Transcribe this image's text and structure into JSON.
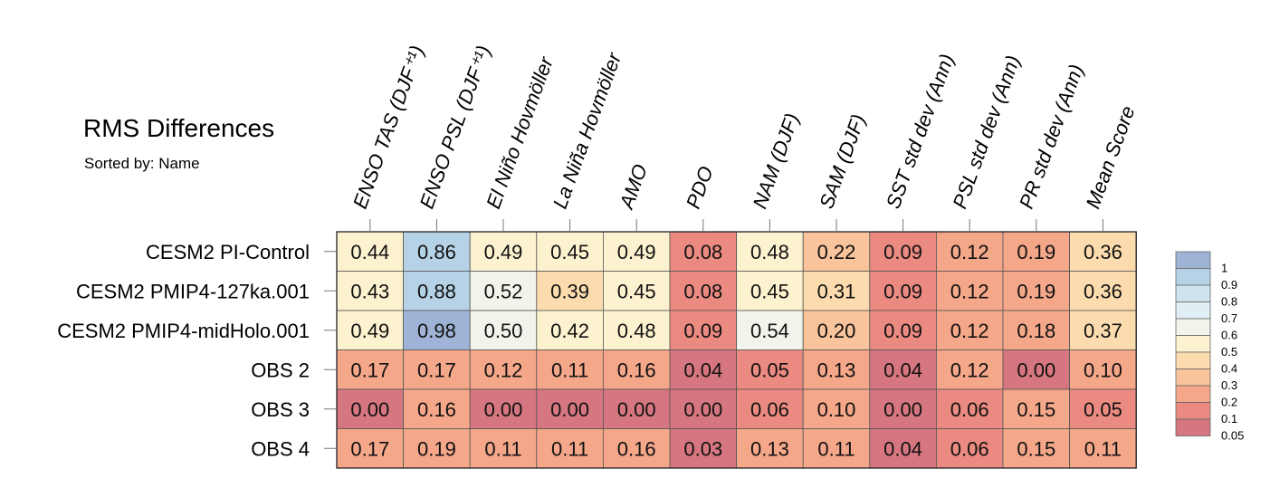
{
  "title": "RMS Differences",
  "subtitle": "Sorted by: Name",
  "chart_data": {
    "type": "heatmap",
    "columns": [
      "ENSO TAS (DJF⁺¹)",
      "ENSO PSL (DJF⁺¹)",
      "El Niño Hovmöller",
      "La Niña Hovmöller",
      "AMO",
      "PDO",
      "NAM (DJF)",
      "SAM (DJF)",
      "SST std dev (Ann)",
      "PSL std dev (Ann)",
      "PR std dev (Ann)",
      "Mean Score"
    ],
    "rows": [
      "CESM2 PI-Control",
      "CESM2 PMIP4-127ka.001",
      "CESM2 PMIP4-midHolo.001",
      "OBS 2",
      "OBS 3",
      "OBS 4"
    ],
    "values": [
      [
        "0.44",
        "0.86",
        "0.49",
        "0.45",
        "0.49",
        "0.08",
        "0.48",
        "0.22",
        "0.09",
        "0.12",
        "0.19",
        "0.36"
      ],
      [
        "0.43",
        "0.88",
        "0.52",
        "0.39",
        "0.45",
        "0.08",
        "0.45",
        "0.31",
        "0.09",
        "0.12",
        "0.19",
        "0.36"
      ],
      [
        "0.49",
        "0.98",
        "0.50",
        "0.42",
        "0.48",
        "0.09",
        "0.54",
        "0.20",
        "0.09",
        "0.12",
        "0.18",
        "0.37"
      ],
      [
        "0.17",
        "0.17",
        "0.12",
        "0.11",
        "0.16",
        "0.04",
        "0.05",
        "0.13",
        "0.04",
        "0.12",
        "0.00",
        "0.10"
      ],
      [
        "0.00",
        "0.16",
        "0.00",
        "0.00",
        "0.00",
        "0.00",
        "0.06",
        "0.10",
        "0.00",
        "0.06",
        "0.15",
        "0.05"
      ],
      [
        "0.17",
        "0.19",
        "0.11",
        "0.11",
        "0.16",
        "0.03",
        "0.13",
        "0.11",
        "0.04",
        "0.06",
        "0.15",
        "0.11"
      ]
    ],
    "colorbar": {
      "labels": [
        "1",
        "0.9",
        "0.8",
        "0.7",
        "0.6",
        "0.5",
        "0.4",
        "0.3",
        "0.2",
        "0.1",
        "0.05"
      ],
      "colors": [
        "#9fb3d6",
        "#b6d2e6",
        "#cde4ef",
        "#e1eff4",
        "#f2f4ec",
        "#fcf2cf",
        "#fcdcaf",
        "#f9c39b",
        "#f5a78a",
        "#eb8a80",
        "#d67681"
      ]
    }
  }
}
